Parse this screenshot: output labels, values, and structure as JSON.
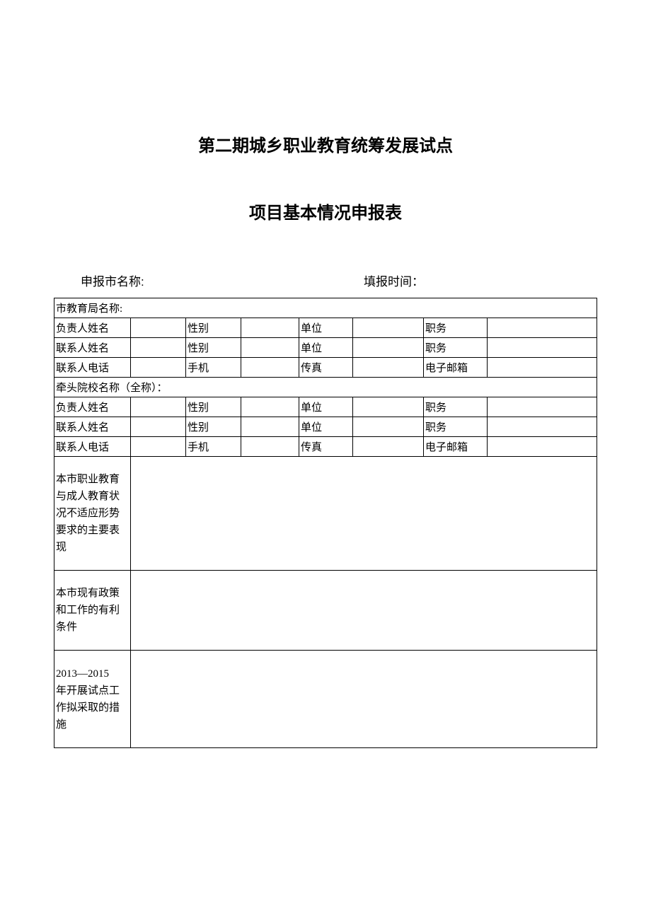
{
  "titles": {
    "line1": "第二期城乡职业教育统筹发展试点",
    "line2": "项目基本情况申报表"
  },
  "header": {
    "city_label": "申报市名称:",
    "date_label": "填报时间："
  },
  "table": {
    "section1_header": "市教育局名称:",
    "row1": {
      "c1": "负责人姓名",
      "c1v": "",
      "c2": "性别",
      "c2v": "",
      "c3": "单位",
      "c3v": "",
      "c4": "职务",
      "c4v": ""
    },
    "row2": {
      "c1": "联系人姓名",
      "c1v": "",
      "c2": "性别",
      "c2v": "",
      "c3": "单位",
      "c3v": "",
      "c4": "职务",
      "c4v": ""
    },
    "row3": {
      "c1": "联系人电话",
      "c1v": "",
      "c2": "手机",
      "c2v": "",
      "c3": "传真",
      "c3v": "",
      "c4": "电子邮箱",
      "c4v": ""
    },
    "section2_header": "牵头院校名称（全称）：",
    "row4": {
      "c1": "负责人姓名",
      "c1v": "",
      "c2": "性别",
      "c2v": "",
      "c3": "单位",
      "c3v": "",
      "c4": "职务",
      "c4v": ""
    },
    "row5": {
      "c1": "联系人姓名",
      "c1v": "",
      "c2": "性别",
      "c2v": "",
      "c3": "单位",
      "c3v": "",
      "c4": "职务",
      "c4v": ""
    },
    "row6": {
      "c1": "联系人电话",
      "c1v": "",
      "c2": "手机",
      "c2v": "",
      "c3": "传真",
      "c3v": "",
      "c4": "电子邮箱",
      "c4v": ""
    },
    "bigrow1": {
      "label": "本市职业教育与成人教育状况不适应形势要求的主要表现",
      "value": ""
    },
    "bigrow2": {
      "label": "本市现有政策和工作的有利条件",
      "value": ""
    },
    "bigrow3": {
      "label_a": "2013—2015",
      "label_b": "年开展试点工作拟采取的措施",
      "value": ""
    }
  }
}
